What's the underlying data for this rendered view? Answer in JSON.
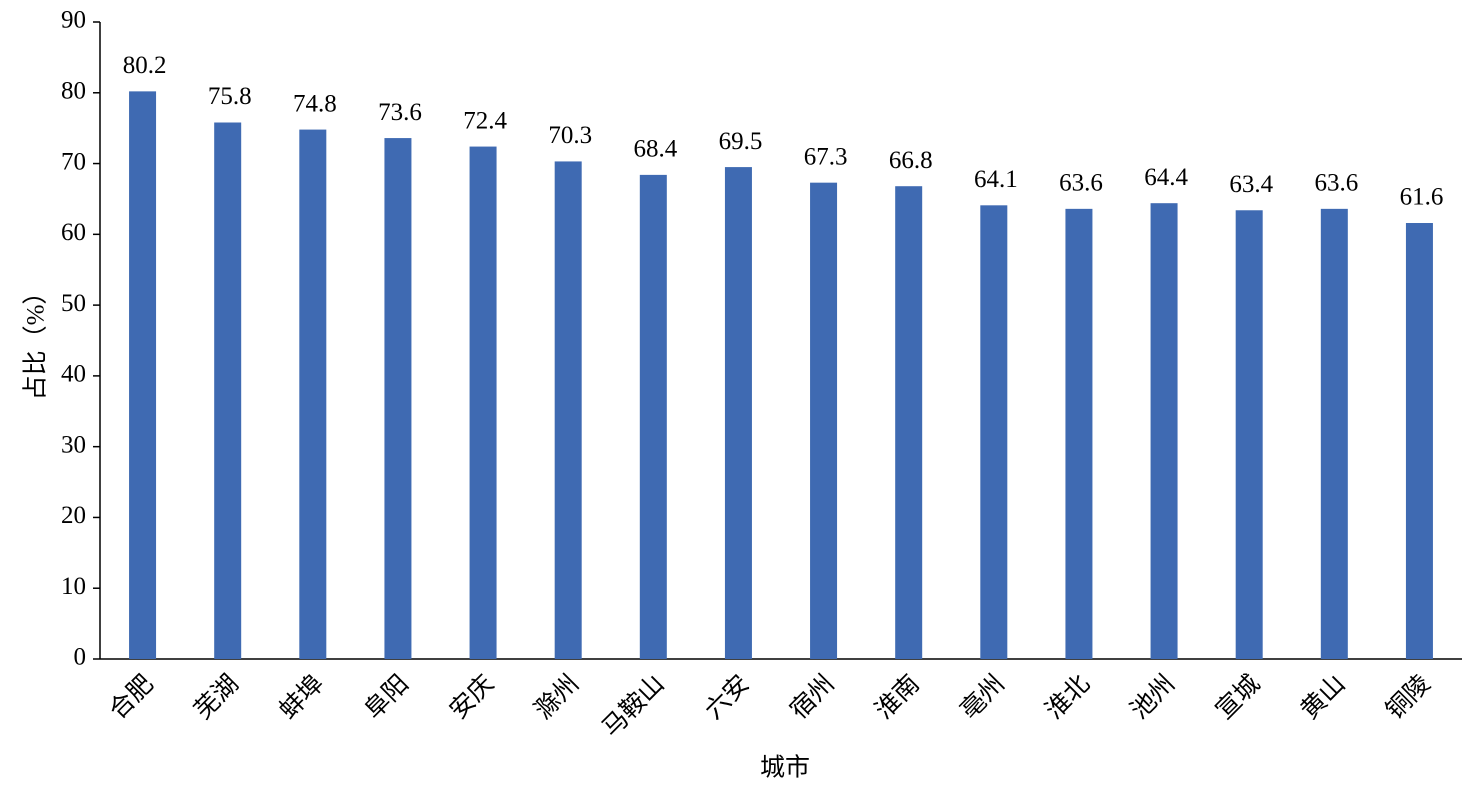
{
  "chart_data": {
    "type": "bar",
    "x_label": "城市",
    "y_label": "占比（%）",
    "categories": [
      "合肥",
      "芜湖",
      "蚌埠",
      "阜阳",
      "安庆",
      "滁州",
      "马鞍山",
      "六安",
      "宿州",
      "淮南",
      "亳州",
      "淮北",
      "池州",
      "宣城",
      "黄山",
      "铜陵"
    ],
    "values": [
      80.2,
      75.8,
      74.8,
      73.6,
      72.4,
      70.3,
      68.4,
      69.5,
      67.3,
      66.8,
      64.1,
      63.6,
      64.4,
      63.4,
      63.6,
      61.6
    ],
    "color": "#3f6ab2",
    "ylim": [
      0,
      90
    ],
    "yticks": [
      0,
      10,
      20,
      30,
      40,
      50,
      60,
      70,
      80,
      90
    ],
    "grid": false
  }
}
